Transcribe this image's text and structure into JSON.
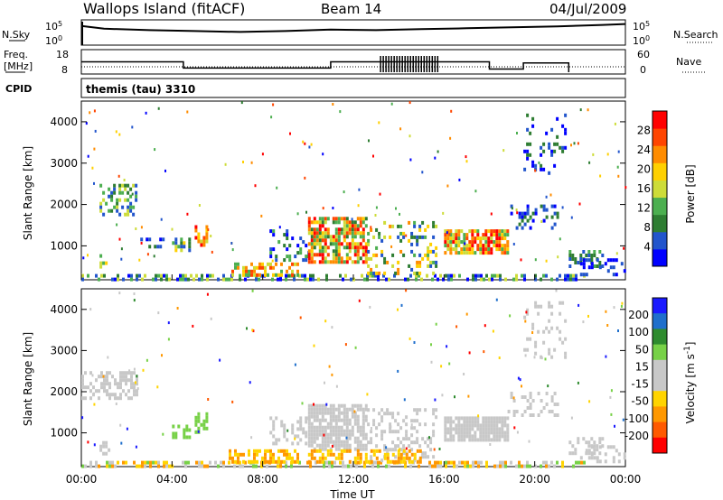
{
  "header": {
    "station": "Wallops Island (fitACF)",
    "beam": "Beam 14",
    "date": "04/Jul/2009"
  },
  "top_panels": {
    "nsky_label": "N.Sky",
    "nsky_ticks": [
      "10^5",
      "10^0"
    ],
    "nsearch_label": "N.Search",
    "nsearch_ticks": [
      "10^5",
      "10^0"
    ],
    "freq_label_1": "Freq.",
    "freq_label_2": "[MHz]",
    "freq_ticks": [
      "18",
      "8"
    ],
    "nave_label": "Nave",
    "nave_ticks": [
      "60",
      "0"
    ],
    "cpid_label": "CPID",
    "cpid_value": "themis (tau) 3310"
  },
  "colors": {
    "power": [
      "#0000ff",
      "#2255cc",
      "#2e7d32",
      "#4caf50",
      "#cddc39",
      "#ffd000",
      "#ff8c00",
      "#ff4500",
      "#ff0000"
    ],
    "velocity": [
      "#1a1aff",
      "#1f6fcc",
      "#2e8b2e",
      "#77d147",
      "#c8c8c8",
      "#c8c8c8",
      "#ffd400",
      "#ff9800",
      "#ff5a00",
      "#ff0000"
    ]
  },
  "chart_data": [
    {
      "type": "heatmap",
      "title": "Power",
      "xlabel": "Time UT",
      "ylabel": "Slant Range [km]",
      "x_ticks": [
        "00:00",
        "04:00",
        "08:00",
        "12:00",
        "16:00",
        "20:00",
        "00:00"
      ],
      "xlim_hours": [
        0,
        24
      ],
      "y_ticks": [
        "1000",
        "2000",
        "3000",
        "4000"
      ],
      "ylim": [
        180,
        4500
      ],
      "colorbar_label": "Power [dB]",
      "colorbar_ticks": [
        "4",
        "8",
        "12",
        "16",
        "20",
        "24",
        "28"
      ],
      "colorbar_range": [
        0,
        32
      ],
      "regions": [
        {
          "t0": 0.0,
          "t1": 22.2,
          "r0": 180,
          "r1": 320,
          "lvl": [
            0,
            4
          ],
          "d": 0.5
        },
        {
          "t0": 0.8,
          "t1": 2.4,
          "r0": 1800,
          "r1": 2500,
          "lvl": [
            1,
            4
          ],
          "d": 0.45
        },
        {
          "t0": 0.8,
          "t1": 1.2,
          "r0": 500,
          "r1": 800,
          "lvl": [
            2,
            5
          ],
          "d": 0.5
        },
        {
          "t0": 2.6,
          "t1": 3.6,
          "r0": 1000,
          "r1": 1200,
          "lvl": [
            0,
            2
          ],
          "d": 0.35
        },
        {
          "t0": 4.0,
          "t1": 4.8,
          "r0": 900,
          "r1": 1200,
          "lvl": [
            1,
            5
          ],
          "d": 0.45
        },
        {
          "t0": 5.0,
          "t1": 5.5,
          "r0": 1000,
          "r1": 1500,
          "lvl": [
            4,
            8
          ],
          "d": 0.6
        },
        {
          "t0": 6.5,
          "t1": 9.5,
          "r0": 300,
          "r1": 600,
          "lvl": [
            3,
            7
          ],
          "d": 0.55
        },
        {
          "t0": 8.3,
          "t1": 10.0,
          "r0": 700,
          "r1": 1400,
          "lvl": [
            0,
            3
          ],
          "d": 0.3
        },
        {
          "t0": 10.0,
          "t1": 12.6,
          "r0": 600,
          "r1": 1700,
          "lvl": [
            2,
            8
          ],
          "d": 0.75
        },
        {
          "t0": 12.6,
          "t1": 15.6,
          "r0": 300,
          "r1": 1600,
          "lvl": [
            1,
            6
          ],
          "d": 0.25
        },
        {
          "t0": 16.0,
          "t1": 18.8,
          "r0": 800,
          "r1": 1400,
          "lvl": [
            3,
            8
          ],
          "d": 0.8
        },
        {
          "t0": 18.8,
          "t1": 21.0,
          "r0": 1400,
          "r1": 2000,
          "lvl": [
            0,
            2
          ],
          "d": 0.3
        },
        {
          "t0": 19.5,
          "t1": 21.3,
          "r0": 2800,
          "r1": 4200,
          "lvl": [
            0,
            2
          ],
          "d": 0.15
        },
        {
          "t0": 21.5,
          "t1": 23.0,
          "r0": 500,
          "r1": 900,
          "lvl": [
            1,
            3
          ],
          "d": 0.45
        },
        {
          "t0": 22.0,
          "t1": 24.0,
          "r0": 300,
          "r1": 700,
          "lvl": [
            0,
            1
          ],
          "d": 0.25
        }
      ]
    },
    {
      "type": "heatmap",
      "title": "Velocity",
      "xlabel": "Time UT",
      "ylabel": "Slant Range [km]",
      "x_ticks": [
        "00:00",
        "04:00",
        "08:00",
        "12:00",
        "16:00",
        "20:00",
        "00:00"
      ],
      "xlim_hours": [
        0,
        24
      ],
      "y_ticks": [
        "1000",
        "2000",
        "3000",
        "4000"
      ],
      "ylim": [
        180,
        4500
      ],
      "colorbar_label": "Velocity [m s^-1]",
      "colorbar_ticks": [
        "200",
        "100",
        "50",
        "15",
        "-15",
        "-50",
        "-100",
        "-200"
      ],
      "regions": [
        {
          "t0": 0.0,
          "t1": 22.2,
          "r0": 180,
          "r1": 320,
          "lvl": [
            3,
            7
          ],
          "d": 0.45
        },
        {
          "t0": 0.0,
          "t1": 2.4,
          "r0": 1800,
          "r1": 2500,
          "lvl": [
            4,
            5
          ],
          "d": 0.55
        },
        {
          "t0": 0.8,
          "t1": 1.2,
          "r0": 500,
          "r1": 800,
          "lvl": [
            4,
            5
          ],
          "d": 0.5
        },
        {
          "t0": 4.0,
          "t1": 4.8,
          "r0": 900,
          "r1": 1200,
          "lvl": [
            3,
            3
          ],
          "d": 0.55
        },
        {
          "t0": 5.0,
          "t1": 5.5,
          "r0": 1000,
          "r1": 1500,
          "lvl": [
            3,
            3
          ],
          "d": 0.65
        },
        {
          "t0": 6.5,
          "t1": 9.5,
          "r0": 300,
          "r1": 600,
          "lvl": [
            6,
            7
          ],
          "d": 0.6
        },
        {
          "t0": 8.3,
          "t1": 10.0,
          "r0": 700,
          "r1": 1400,
          "lvl": [
            4,
            5
          ],
          "d": 0.35
        },
        {
          "t0": 10.0,
          "t1": 12.6,
          "r0": 600,
          "r1": 1700,
          "lvl": [
            4,
            5
          ],
          "d": 0.8
        },
        {
          "t0": 12.6,
          "t1": 15.6,
          "r0": 300,
          "r1": 1600,
          "lvl": [
            4,
            5
          ],
          "d": 0.3
        },
        {
          "t0": 10.0,
          "t1": 15.0,
          "r0": 300,
          "r1": 600,
          "lvl": [
            6,
            7
          ],
          "d": 0.45
        },
        {
          "t0": 16.0,
          "t1": 18.8,
          "r0": 800,
          "r1": 1400,
          "lvl": [
            4,
            5
          ],
          "d": 0.85
        },
        {
          "t0": 18.8,
          "t1": 21.0,
          "r0": 1400,
          "r1": 2000,
          "lvl": [
            4,
            5
          ],
          "d": 0.3
        },
        {
          "t0": 19.5,
          "t1": 21.3,
          "r0": 2800,
          "r1": 4200,
          "lvl": [
            4,
            5
          ],
          "d": 0.15
        },
        {
          "t0": 21.5,
          "t1": 23.0,
          "r0": 500,
          "r1": 900,
          "lvl": [
            4,
            5
          ],
          "d": 0.5
        },
        {
          "t0": 22.0,
          "t1": 24.0,
          "r0": 300,
          "r1": 700,
          "lvl": [
            4,
            5
          ],
          "d": 0.3
        }
      ]
    }
  ],
  "time_series": {
    "nsky_log": [
      [
        0,
        4.1
      ],
      [
        1,
        3.5
      ],
      [
        3,
        3.2
      ],
      [
        5,
        3.0
      ],
      [
        7,
        2.8
      ],
      [
        9,
        3.0
      ],
      [
        11,
        3.3
      ],
      [
        13,
        3.2
      ],
      [
        15,
        3.4
      ],
      [
        17,
        3.6
      ],
      [
        19,
        3.8
      ],
      [
        21,
        4.0
      ],
      [
        23,
        4.3
      ],
      [
        24,
        4.5
      ]
    ],
    "freq_mhz": [
      [
        0,
        13
      ],
      [
        4.5,
        13
      ],
      [
        4.5,
        10
      ],
      [
        11,
        10
      ],
      [
        11,
        13
      ],
      [
        18,
        13
      ],
      [
        18,
        9.5
      ],
      [
        19.5,
        9.5
      ],
      [
        19.5,
        12.5
      ],
      [
        21.5,
        12.5
      ],
      [
        21.5,
        8
      ]
    ],
    "nave": [
      [
        0,
        20
      ],
      [
        24,
        20
      ]
    ]
  }
}
